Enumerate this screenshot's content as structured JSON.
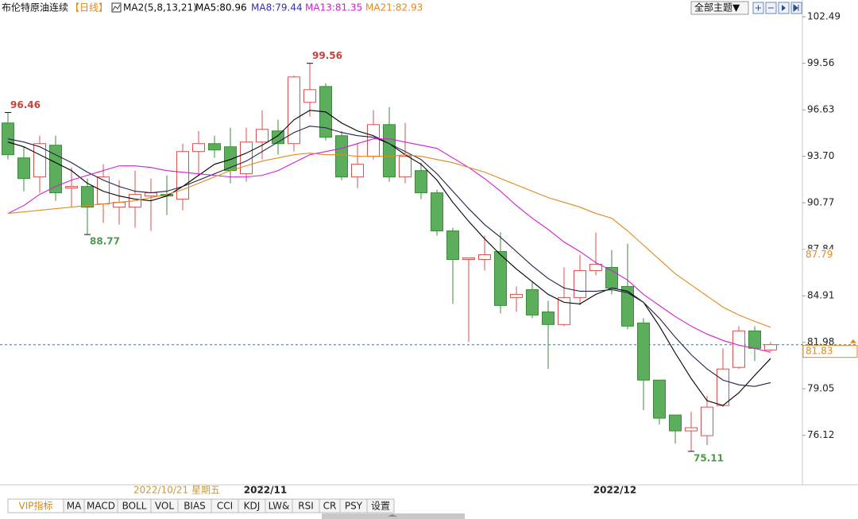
{
  "chart_data": {
    "type": "candlestick",
    "title": "布伦特原油连续",
    "period": "【日线】",
    "indicator": "MA2(5,8,13,21)",
    "theme_button": "全部主题▼",
    "cursor_date": "2022/10/21 星期五",
    "categories": [
      null,
      null,
      null,
      null,
      null,
      null,
      null,
      null,
      null,
      null,
      null,
      null,
      null,
      null,
      null,
      null,
      "2022/11",
      null,
      null,
      null,
      null,
      null,
      null,
      null,
      null,
      null,
      null,
      null,
      null,
      null,
      null,
      null,
      null,
      null,
      null,
      null,
      null,
      null,
      "2022/12",
      null,
      null,
      null,
      null,
      null,
      null,
      null,
      null,
      null,
      null
    ],
    "open": [
      95.8,
      93.6,
      92.4,
      94.4,
      91.7,
      91.8,
      90.7,
      90.5,
      90.5,
      91.2,
      91.3,
      91.0,
      94.0,
      94.5,
      94.3,
      92.6,
      94.6,
      95.3,
      94.5,
      97.1,
      98.1,
      95.0,
      92.4,
      93.7,
      95.7,
      92.4,
      92.8,
      91.4,
      89.0,
      87.2,
      87.2,
      87.7,
      84.8,
      85.3,
      83.9,
      83.1,
      84.8,
      86.5,
      86.7,
      85.5,
      83.2,
      79.6,
      77.4,
      76.4,
      76.1,
      78.0,
      80.4,
      82.7,
      81.5
    ],
    "high": [
      96.46,
      94.3,
      95.0,
      95.0,
      93.0,
      92.3,
      93.2,
      92.2,
      92.8,
      92.3,
      92.5,
      94.5,
      95.3,
      95.0,
      95.5,
      95.5,
      96.6,
      96.0,
      98.8,
      99.56,
      98.3,
      95.3,
      94.5,
      96.6,
      96.8,
      95.8,
      93.3,
      91.6,
      89.2,
      87.3,
      88.7,
      88.9,
      85.5,
      85.8,
      84.6,
      86.7,
      87.5,
      88.9,
      87.8,
      88.2,
      83.5,
      79.6,
      77.4,
      77.6,
      78.6,
      81.6,
      83.0,
      83.0,
      82.0
    ],
    "low": [
      93.5,
      91.5,
      91.4,
      90.9,
      90.5,
      88.77,
      89.5,
      89.4,
      89.2,
      89.0,
      90.0,
      90.3,
      92.5,
      93.6,
      92.0,
      92.1,
      93.5,
      93.8,
      94.0,
      96.2,
      94.7,
      92.2,
      91.7,
      93.5,
      92.1,
      92.0,
      91.0,
      88.7,
      84.4,
      82.0,
      86.5,
      83.8,
      83.9,
      83.5,
      80.3,
      83.0,
      84.3,
      86.2,
      85.0,
      82.8,
      77.7,
      76.8,
      75.6,
      75.11,
      75.5,
      77.9,
      80.3,
      80.8,
      81.4
    ],
    "close": [
      93.8,
      92.3,
      94.5,
      91.4,
      91.8,
      90.5,
      92.4,
      90.8,
      91.3,
      91.4,
      91.2,
      94.0,
      94.5,
      94.1,
      92.8,
      94.6,
      95.4,
      94.5,
      98.7,
      97.9,
      94.9,
      92.4,
      93.2,
      95.7,
      92.4,
      93.7,
      91.4,
      89.0,
      87.2,
      87.3,
      87.5,
      84.3,
      85.0,
      83.7,
      83.1,
      84.8,
      86.5,
      86.9,
      85.4,
      83.0,
      79.6,
      77.2,
      76.4,
      76.6,
      77.9,
      80.3,
      82.7,
      81.6,
      81.83
    ],
    "up_color": "#d9534f",
    "down_color": "#5cad5c",
    "series": [
      {
        "name": "MA5:80.96",
        "color": "#000000",
        "values": [
          94.6,
          94.3,
          93.8,
          93.3,
          92.8,
          92.0,
          91.5,
          91.2,
          91.0,
          90.9,
          91.2,
          91.8,
          92.5,
          93.2,
          93.5,
          93.9,
          94.4,
          95.0,
          96.0,
          96.6,
          96.5,
          95.8,
          95.3,
          95.0,
          94.5,
          93.8,
          93.2,
          92.2,
          90.8,
          89.6,
          88.5,
          87.5,
          86.6,
          85.8,
          85.0,
          84.5,
          84.4,
          85.0,
          85.4,
          85.2,
          84.5,
          83.0,
          81.3,
          79.7,
          78.3,
          78.0,
          78.8,
          79.9,
          80.96
        ]
      },
      {
        "name": "MA8:79.44",
        "color": "#22224a",
        "values": [
          94.8,
          94.6,
          94.3,
          93.8,
          93.3,
          92.7,
          92.2,
          91.8,
          91.5,
          91.4,
          91.5,
          91.8,
          92.2,
          92.6,
          93.0,
          93.4,
          94.0,
          94.6,
          95.2,
          95.6,
          95.5,
          95.2,
          95.0,
          94.9,
          94.5,
          94.0,
          93.5,
          92.6,
          91.5,
          90.4,
          89.4,
          88.6,
          87.7,
          86.8,
          86.0,
          85.4,
          85.2,
          85.2,
          85.3,
          85.1,
          84.5,
          83.5,
          82.3,
          81.2,
          80.3,
          79.6,
          79.3,
          79.2,
          79.44
        ]
      },
      {
        "name": "MA13:81.35",
        "color": "#d020d0",
        "values": [
          90.1,
          90.6,
          91.3,
          91.8,
          92.2,
          92.5,
          92.8,
          93.1,
          93.1,
          93.0,
          92.8,
          92.7,
          92.6,
          92.5,
          92.4,
          92.4,
          92.5,
          92.8,
          93.3,
          93.8,
          94.0,
          94.2,
          94.5,
          94.8,
          94.8,
          94.6,
          94.4,
          94.2,
          93.6,
          93.0,
          92.3,
          91.5,
          90.6,
          89.8,
          89.1,
          88.3,
          87.7,
          87.0,
          86.5,
          85.9,
          85.0,
          84.3,
          83.6,
          83.0,
          82.5,
          82.1,
          81.8,
          81.6,
          81.35
        ]
      },
      {
        "name": "MA21:82.93",
        "color": "#e08a1e",
        "values": [
          90.1,
          90.2,
          90.3,
          90.4,
          90.5,
          90.6,
          90.7,
          90.8,
          90.9,
          91.1,
          91.3,
          91.6,
          92.0,
          92.4,
          92.8,
          93.1,
          93.4,
          93.6,
          93.8,
          93.9,
          93.8,
          93.8,
          93.7,
          93.7,
          93.7,
          93.8,
          93.7,
          93.5,
          93.3,
          93.0,
          92.7,
          92.3,
          91.9,
          91.5,
          91.1,
          90.8,
          90.5,
          90.1,
          89.8,
          89.0,
          88.1,
          87.2,
          86.3,
          85.6,
          84.9,
          84.2,
          83.7,
          83.3,
          82.93
        ]
      }
    ],
    "annotations": [
      96.46,
      88.77,
      99.56,
      75.11
    ],
    "price_marks": [
      87.79,
      81.83
    ],
    "ylim": [
      73.0,
      103.55
    ],
    "yticks": [
      102.49,
      99.56,
      96.63,
      {
        "value": 93.7,
        "label": "93.70"
      },
      90.77,
      87.84,
      84.91,
      81.98,
      79.05,
      76.12
    ],
    "tabs": [
      "VIP指标",
      "MA",
      "MACD",
      "BOLL",
      "VOL",
      "BIAS",
      "CCI",
      "KDJ",
      "LW&",
      "RSI",
      "CR",
      "PSY",
      "设置"
    ]
  }
}
